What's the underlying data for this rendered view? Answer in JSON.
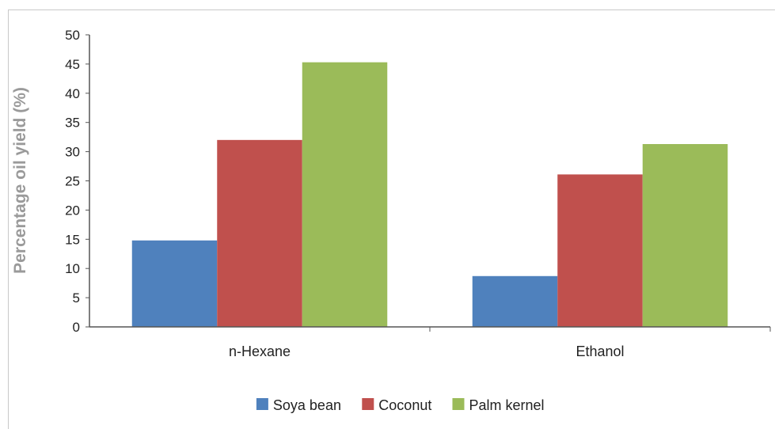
{
  "chart_data": {
    "type": "bar",
    "title": "",
    "xlabel": "",
    "ylabel": "Percentage oil yield (%)",
    "categories": [
      "n-Hexane",
      "Ethanol"
    ],
    "series": [
      {
        "name": "Soya bean",
        "color": "#4f81bd",
        "values": [
          14.8,
          8.7
        ]
      },
      {
        "name": "Coconut",
        "color": "#c0504d",
        "values": [
          32.0,
          26.1
        ]
      },
      {
        "name": "Palm kernel",
        "color": "#9bbb59",
        "values": [
          45.3,
          31.3
        ]
      }
    ],
    "ylim": [
      0,
      50
    ],
    "yticks": [
      "0",
      "5",
      "10",
      "15",
      "20",
      "25",
      "30",
      "35",
      "40",
      "45",
      "50"
    ],
    "grid": false,
    "legend": "bottom"
  }
}
